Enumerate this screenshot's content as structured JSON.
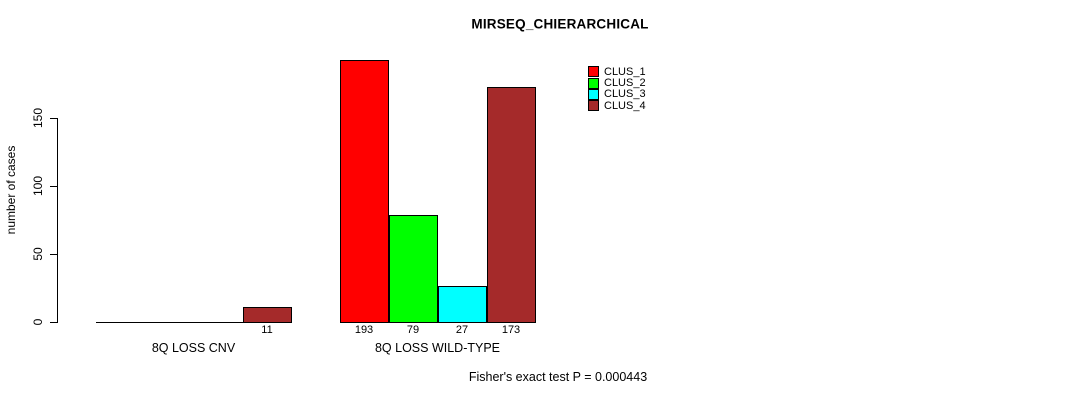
{
  "figure": {
    "background": "#FFFFFF"
  },
  "chart_data": {
    "type": "bar",
    "title": "MIRSEQ_CHIERARCHICAL",
    "xlabel": "",
    "ylabel": "number of cases",
    "yticks": [
      0,
      50,
      100,
      150
    ],
    "ylim": [
      0,
      193
    ],
    "grid": false,
    "legend_position": "top-right",
    "axis_color": "#000000",
    "categories": [
      "8Q LOSS CNV",
      "8Q LOSS WILD-TYPE"
    ],
    "series": [
      {
        "name": "CLUS_1",
        "color": "#FF0000",
        "values": [
          0,
          193
        ]
      },
      {
        "name": "CLUS_2",
        "color": "#00FF00",
        "values": [
          0,
          79
        ]
      },
      {
        "name": "CLUS_3",
        "color": "#00FFFF",
        "values": [
          0,
          27
        ]
      },
      {
        "name": "CLUS_4",
        "color": "#A52A2A",
        "values": [
          11,
          173
        ]
      }
    ],
    "bar_value_labels": [
      [
        "",
        "",
        "",
        "11"
      ],
      [
        "193",
        "79",
        "27",
        "173"
      ]
    ],
    "annotation": "Fisher's exact test P = 0.000443"
  }
}
